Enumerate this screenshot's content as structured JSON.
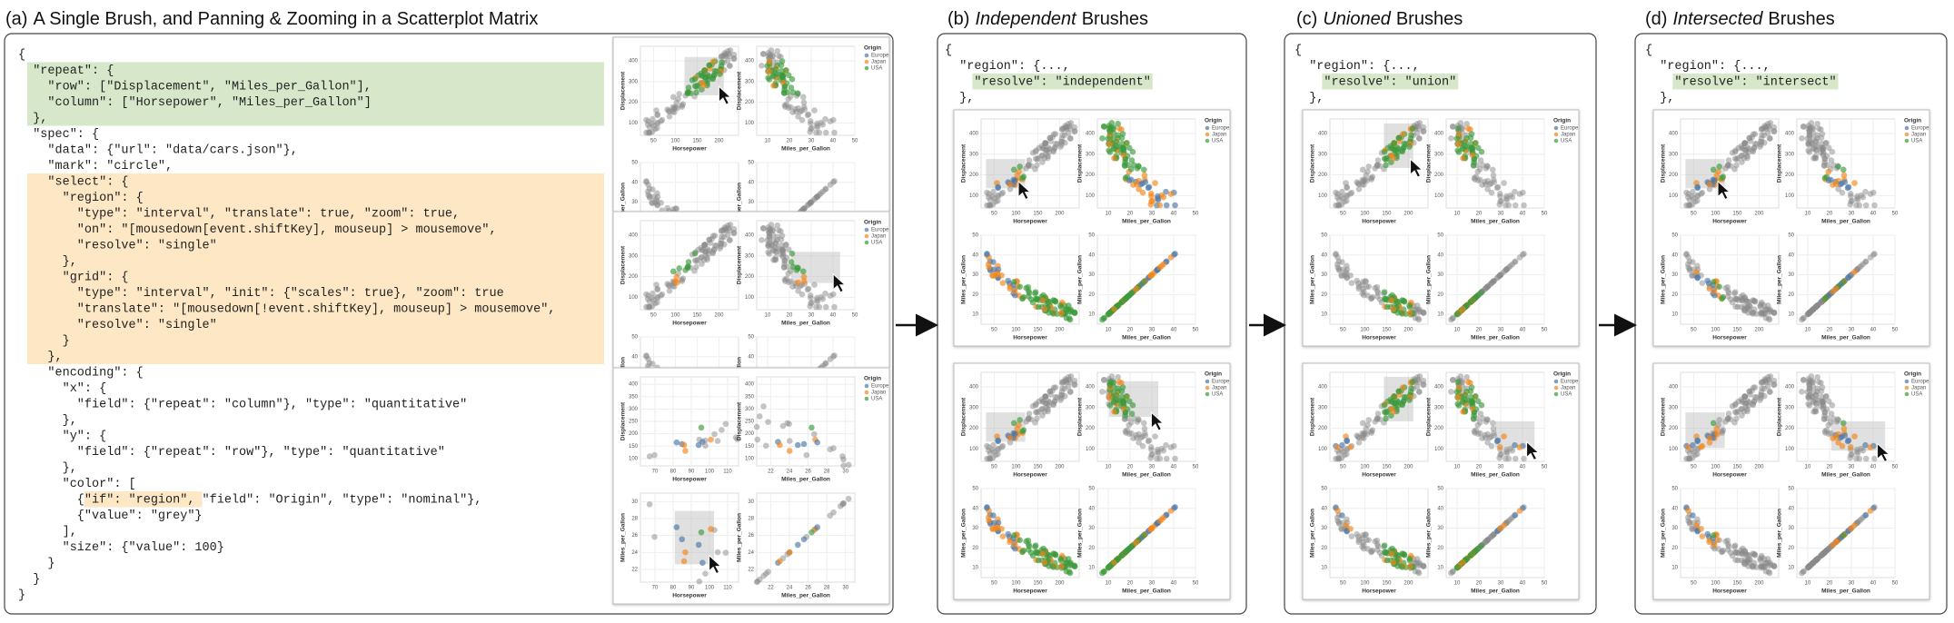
{
  "panels": [
    {
      "label": "(a)",
      "title": "A Single Brush, and Panning & Zooming in a Scatterplot Matrix",
      "code": [
        "{",
        "  \"repeat\": {",
        "    \"row\": [\"Displacement\", \"Miles_per_Gallon\"],",
        "    \"column\": [\"Horsepower\", \"Miles_per_Gallon\"]",
        "  },",
        "  \"spec\": {",
        "    \"data\": {\"url\": \"data/cars.json\"},",
        "    \"mark\": \"circle\",",
        "    \"select\": {",
        "      \"region\": {",
        "        \"type\": \"interval\", \"translate\": true, \"zoom\": true,",
        "        \"on\": \"[mousedown[event.shiftKey], mouseup] > mousemove\",",
        "        \"resolve\": \"single\"",
        "      },",
        "      \"grid\": {",
        "        \"type\": \"interval\", \"init\": {\"scales\": true}, \"zoom\": true",
        "        \"translate\": \"[mousedown[!event.shiftKey], mouseup] > mousemove\",",
        "        \"resolve\": \"single\"",
        "      }",
        "    },",
        "    \"encoding\": {",
        "      \"x\": {",
        "        \"field\": {\"repeat\": \"column\"}, \"type\": \"quantitative\"",
        "      },",
        "      \"y\": {",
        "        \"field\": {\"repeat\": \"row\"}, \"type\": \"quantitative\"",
        "      },",
        "      \"color\": [",
        "        {\"if\": \"region\", \"field\": \"Origin\", \"type\": \"nominal\"},",
        "        {\"value\": \"grey\"}",
        "      ],",
        "      \"size\": {\"value\": 100}",
        "    }",
        "  }",
        "}"
      ]
    },
    {
      "label": "(b)",
      "emphasis": "Independent",
      "title": "Brushes",
      "code": [
        "{",
        "  \"region\": {...,",
        "    \"resolve\": \"independent\"",
        "  },"
      ]
    },
    {
      "label": "(c)",
      "emphasis": "Unioned",
      "title": "Brushes",
      "code": [
        "{",
        "  \"region\": {...,",
        "    \"resolve\": \"union\"",
        "  },"
      ]
    },
    {
      "label": "(d)",
      "emphasis": "Intersected",
      "title": "Brushes",
      "code": [
        "{",
        "  \"region\": {...,",
        "    \"resolve\": \"intersect\"",
        "  },"
      ]
    }
  ],
  "scatter_matrix": {
    "columns": [
      "Horsepower",
      "Miles_per_Gallon"
    ],
    "rows": [
      "Displacement",
      "Miles_per_Gallon"
    ],
    "domains": {
      "Horsepower": [
        20,
        245
      ],
      "Displacement": [
        40,
        470
      ],
      "Miles_per_Gallon": [
        5,
        50
      ]
    },
    "ticks": {
      "Horsepower": [
        50,
        100,
        150,
        200
      ],
      "Displacement": [
        100,
        200,
        300,
        400
      ],
      "Miles_per_Gallon": [
        10,
        20,
        30,
        40,
        50
      ]
    },
    "zoomed_domains": {
      "Horsepower": [
        62,
        116
      ],
      "Displacement": [
        70,
        430
      ],
      "Miles_per_Gallon": [
        20.5,
        31
      ]
    },
    "zoomed_ticks": {
      "Horsepower": [
        70,
        80,
        90,
        100,
        110
      ],
      "Displacement": [
        100,
        150,
        200,
        250,
        300,
        350,
        400
      ],
      "Miles_per_Gallon": [
        22,
        24,
        26,
        28,
        30
      ]
    },
    "legend": {
      "title": "Origin",
      "entries": [
        "Europe",
        "Japan",
        "USA"
      ],
      "colors": [
        "#4c78a8",
        "#f58518",
        "#3c9a3c"
      ]
    },
    "unselected_color": "#8a8a8a"
  }
}
